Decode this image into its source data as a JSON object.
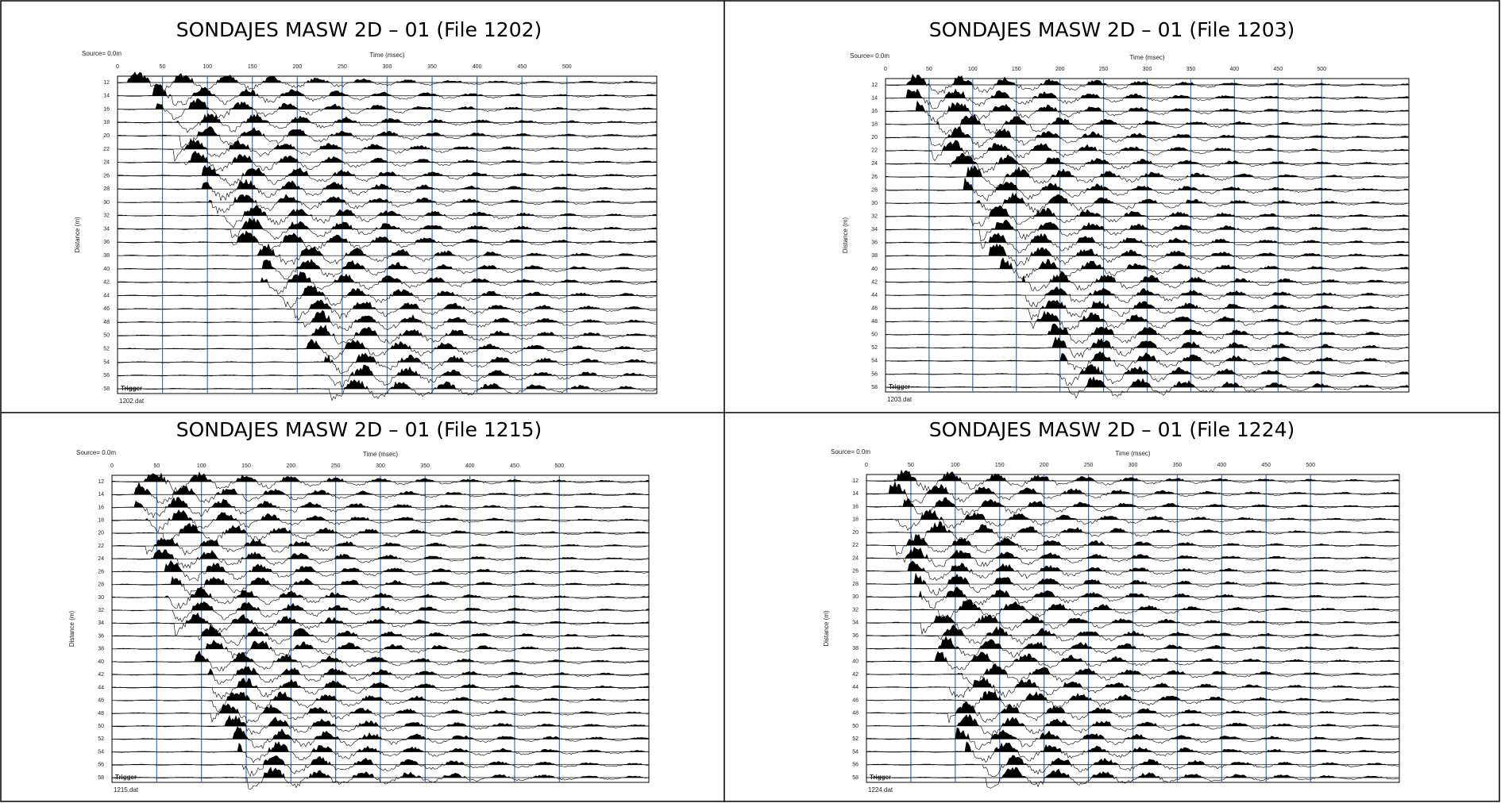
{
  "panels": [
    {
      "title": "SONDAJES MASW 2D – 01 (File 1202)",
      "source": "Source= 0.0m",
      "x_label": "Time (msec)",
      "y_label": "Distance (m)",
      "xticks": [
        0,
        50,
        100,
        150,
        200,
        250,
        300,
        350,
        400,
        450,
        500
      ],
      "yticks": [
        12,
        14,
        16,
        18,
        20,
        22,
        24,
        26,
        28,
        30,
        32,
        34,
        36,
        38,
        40,
        42,
        44,
        46,
        48,
        50,
        52,
        54,
        56,
        58
      ],
      "trigger": "Trigger",
      "file": "1202.dat"
    },
    {
      "title": "SONDAJES MASW 2D – 01 (File 1203)",
      "source": "Source= 0.0m",
      "x_label": "Time (msec)",
      "y_label": "Distance (m)",
      "xticks": [
        0,
        50,
        100,
        150,
        200,
        250,
        300,
        350,
        400,
        450,
        500
      ],
      "yticks": [
        12,
        14,
        16,
        18,
        20,
        22,
        24,
        26,
        28,
        30,
        32,
        34,
        36,
        38,
        40,
        42,
        44,
        46,
        48,
        50,
        52,
        54,
        56,
        58
      ],
      "trigger": "Trigger",
      "file": "1203.dat"
    },
    {
      "title": "SONDAJES MASW 2D – 01 (File 1215)",
      "source": "Source= 0.0m",
      "x_label": "Time (msec)",
      "y_label": "Distance (m)",
      "xticks": [
        0,
        50,
        100,
        150,
        200,
        250,
        300,
        350,
        400,
        450,
        500
      ],
      "yticks": [
        12,
        14,
        16,
        18,
        20,
        22,
        24,
        26,
        28,
        30,
        32,
        34,
        36,
        38,
        40,
        42,
        44,
        46,
        48,
        50,
        52,
        54,
        56,
        58
      ],
      "trigger": "Trigger",
      "file": "1215.dat"
    },
    {
      "title": "SONDAJES MASW 2D – 01 (File 1224)",
      "source": "Source= 0.0m",
      "x_label": "Time (msec)",
      "y_label": "Distance (m)",
      "xticks": [
        0,
        50,
        100,
        150,
        200,
        250,
        300,
        350,
        400,
        450,
        500
      ],
      "yticks": [
        12,
        14,
        16,
        18,
        20,
        22,
        24,
        26,
        28,
        30,
        32,
        34,
        36,
        38,
        40,
        42,
        44,
        46,
        48,
        50,
        52,
        54,
        56,
        58
      ],
      "trigger": "Trigger",
      "file": "1224.dat"
    }
  ]
}
